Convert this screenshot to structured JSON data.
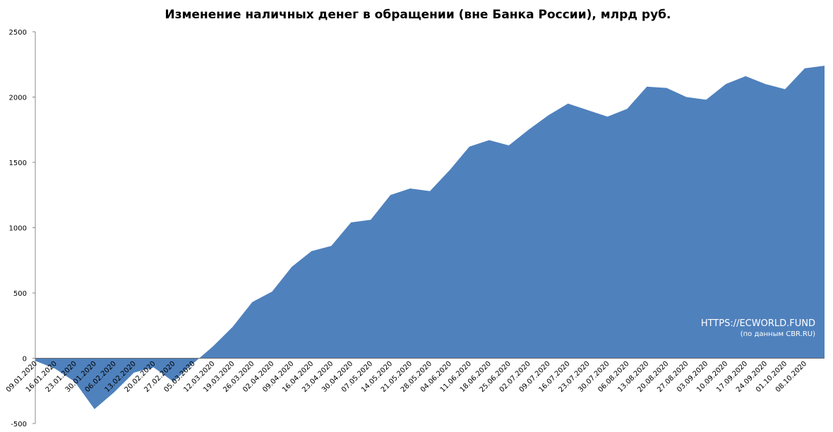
{
  "chart_data": {
    "type": "area",
    "title": "Изменение наличных денег в обращении (вне Банка России), млрд руб.",
    "annotations": [
      "HTTPS://ECWORLD.FUND",
      "(по данным  CBR.RU)"
    ],
    "categories": [
      "09.01.2020",
      "16.01.2020",
      "23.01.2020",
      "30.01.2020",
      "06.02.2020",
      "13.02.2020",
      "20.02.2020",
      "27.02.2020",
      "05.03.2020",
      "12.03.2020",
      "19.03.2020",
      "26.03.2020",
      "02.04.2020",
      "09.04.2020",
      "16.04.2020",
      "23.04.2020",
      "30.04.2020",
      "07.05.2020",
      "14.05.2020",
      "21.05.2020",
      "28.05.2020",
      "04.06.2020",
      "11.06.2020",
      "18.06.2020",
      "25.06.2020",
      "02.07.2020",
      "09.07.2020",
      "16.07.2020",
      "23.07.2020",
      "30.07.2020",
      "06.08.2020",
      "13.08.2020",
      "20.08.2020",
      "27.08.2020",
      "03.09.2020",
      "10.09.2020",
      "17.09.2020",
      "24.09.2020",
      "01.10.2020",
      "08.10.2020",
      null
    ],
    "values": [
      -20,
      -80,
      -180,
      -390,
      -260,
      -110,
      -70,
      -180,
      -40,
      90,
      240,
      430,
      510,
      700,
      820,
      860,
      1040,
      1060,
      1250,
      1300,
      1280,
      1440,
      1620,
      1670,
      1630,
      1750,
      1860,
      1950,
      1900,
      1850,
      1910,
      2080,
      2070,
      2000,
      1980,
      2100,
      2160,
      2100,
      2060,
      2220,
      2240
    ],
    "color": "#4f81bd",
    "ylim": [
      -500,
      2500
    ],
    "yticks": [
      -500,
      0,
      500,
      1000,
      1500,
      2000,
      2500
    ]
  }
}
